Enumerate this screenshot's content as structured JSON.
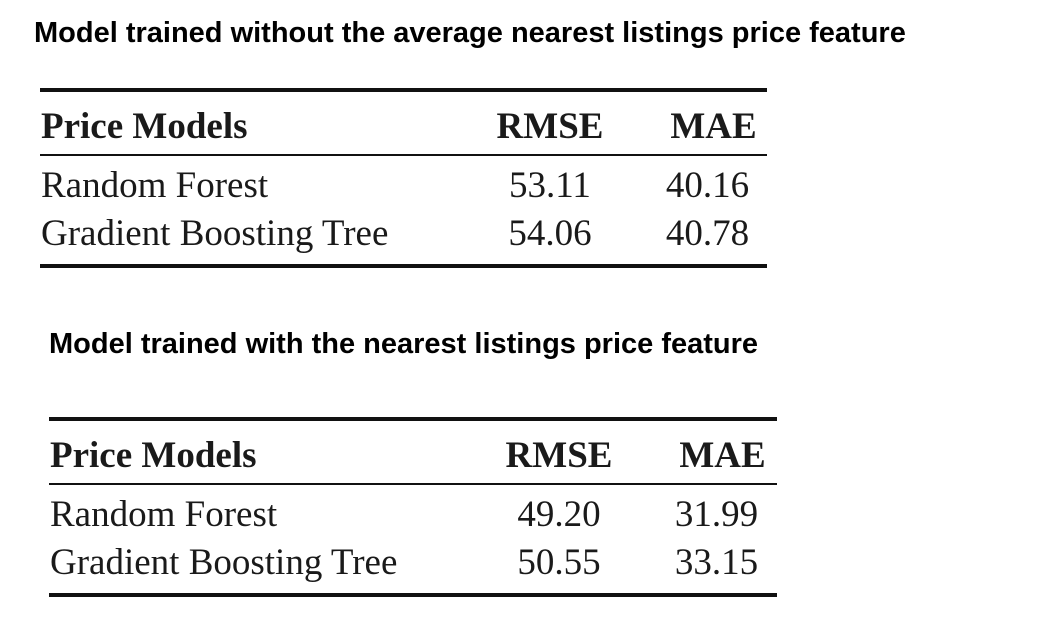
{
  "sections": [
    {
      "heading": "Model trained without the average nearest listings price feature",
      "table": {
        "headers": [
          "Price Models",
          "RMSE",
          "MAE"
        ],
        "rows": [
          {
            "model": "Random Forest",
            "rmse": "53.11",
            "mae": "40.16"
          },
          {
            "model": "Gradient Boosting Tree",
            "rmse": "54.06",
            "mae": "40.78"
          }
        ]
      }
    },
    {
      "heading": "Model trained with the nearest listings price feature",
      "table": {
        "headers": [
          "Price Models",
          "RMSE",
          "MAE"
        ],
        "rows": [
          {
            "model": "Random Forest",
            "rmse": "49.20",
            "mae": "31.99"
          },
          {
            "model": "Gradient Boosting Tree",
            "rmse": "50.55",
            "mae": "33.15"
          }
        ]
      }
    }
  ]
}
